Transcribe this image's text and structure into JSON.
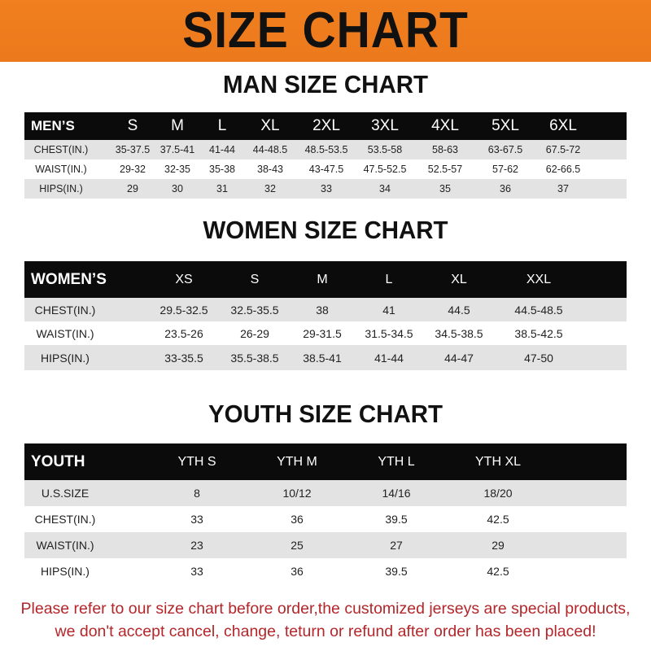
{
  "banner_title": "SIZE CHART",
  "men": {
    "title": "MAN SIZE CHART",
    "header": [
      "MEN’S",
      "S",
      "M",
      "L",
      "XL",
      "2XL",
      "3XL",
      "4XL",
      "5XL",
      "6XL"
    ],
    "rows": [
      [
        "CHEST(IN.)",
        "35-37.5",
        "37.5-41",
        "41-44",
        "44-48.5",
        "48.5-53.5",
        "53.5-58",
        "58-63",
        "63-67.5",
        "67.5-72"
      ],
      [
        "WAIST(IN.)",
        "29-32",
        "32-35",
        "35-38",
        "38-43",
        "43-47.5",
        "47.5-52.5",
        "52.5-57",
        "57-62",
        "62-66.5"
      ],
      [
        "HIPS(IN.)",
        "29",
        "30",
        "31",
        "32",
        "33",
        "34",
        "35",
        "36",
        "37"
      ]
    ]
  },
  "women": {
    "title": "WOMEN SIZE CHART",
    "header": [
      "WOMEN’S",
      "XS",
      "S",
      "M",
      "L",
      "XL",
      "XXL"
    ],
    "rows": [
      [
        "CHEST(IN.)",
        "29.5-32.5",
        "32.5-35.5",
        "38",
        "41",
        "44.5",
        "44.5-48.5"
      ],
      [
        "WAIST(IN.)",
        "23.5-26",
        "26-29",
        "29-31.5",
        "31.5-34.5",
        "34.5-38.5",
        "38.5-42.5"
      ],
      [
        "HIPS(IN.)",
        "33-35.5",
        "35.5-38.5",
        "38.5-41",
        "41-44",
        "44-47",
        "47-50"
      ]
    ]
  },
  "youth": {
    "title": "YOUTH SIZE CHART",
    "header": [
      "YOUTH",
      "YTH S",
      "YTH M",
      "YTH L",
      "YTH XL"
    ],
    "rows": [
      [
        "U.S.SIZE",
        "8",
        "10/12",
        "14/16",
        "18/20"
      ],
      [
        "CHEST(IN.)",
        "33",
        "36",
        "39.5",
        "42.5"
      ],
      [
        "WAIST(IN.)",
        "23",
        "25",
        "27",
        "29"
      ],
      [
        "HIPS(IN.)",
        "33",
        "36",
        "39.5",
        "42.5"
      ]
    ]
  },
  "footer": {
    "line1": "Please refer to our size chart before order,the customized jerseys are special products,",
    "line2": "we don't accept cancel, change, teturn or refund after order has been placed!"
  },
  "colors": {
    "banner": "#f07f20",
    "header_row": "#0c0b0b",
    "stripe": "#e3e3e3",
    "notice": "#b3262a"
  }
}
